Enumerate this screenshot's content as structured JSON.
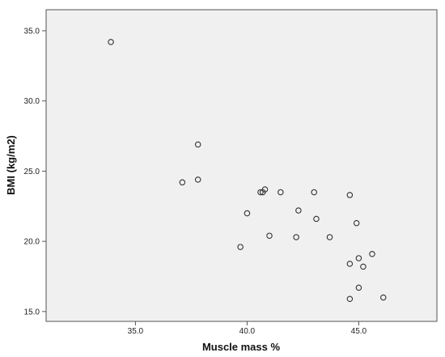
{
  "chart_data": {
    "type": "scatter",
    "title": "",
    "xlabel": "Muscle mass %",
    "ylabel": "BMI (kg/m2)",
    "xlim": [
      31.0,
      48.5
    ],
    "ylim": [
      14.3,
      36.5
    ],
    "x_ticks": [
      35.0,
      40.0,
      45.0
    ],
    "x_tick_labels": [
      "35.0",
      "40.0",
      "45.0"
    ],
    "y_ticks": [
      15.0,
      20.0,
      25.0,
      30.0,
      35.0
    ],
    "y_tick_labels": [
      "15.0",
      "20.0",
      "25.0",
      "30.0",
      "35.0"
    ],
    "grid": false,
    "legend": "none",
    "background_color": "#f0f0f0",
    "marker_color": "#333333",
    "marker": "open-circle",
    "points": [
      {
        "x": 33.9,
        "y": 34.2
      },
      {
        "x": 37.1,
        "y": 24.2
      },
      {
        "x": 37.8,
        "y": 26.9
      },
      {
        "x": 37.8,
        "y": 24.4
      },
      {
        "x": 39.7,
        "y": 19.6
      },
      {
        "x": 40.0,
        "y": 22.0
      },
      {
        "x": 40.6,
        "y": 23.5
      },
      {
        "x": 40.7,
        "y": 23.5
      },
      {
        "x": 40.8,
        "y": 23.7
      },
      {
        "x": 41.0,
        "y": 20.4
      },
      {
        "x": 41.5,
        "y": 23.5
      },
      {
        "x": 42.2,
        "y": 20.3
      },
      {
        "x": 42.3,
        "y": 22.2
      },
      {
        "x": 43.0,
        "y": 23.5
      },
      {
        "x": 43.1,
        "y": 21.6
      },
      {
        "x": 43.7,
        "y": 20.3
      },
      {
        "x": 44.6,
        "y": 23.3
      },
      {
        "x": 44.6,
        "y": 18.4
      },
      {
        "x": 44.6,
        "y": 15.9
      },
      {
        "x": 44.9,
        "y": 21.3
      },
      {
        "x": 45.0,
        "y": 18.8
      },
      {
        "x": 45.0,
        "y": 16.7
      },
      {
        "x": 45.2,
        "y": 18.2
      },
      {
        "x": 45.6,
        "y": 19.1
      },
      {
        "x": 46.1,
        "y": 16.0
      }
    ]
  }
}
